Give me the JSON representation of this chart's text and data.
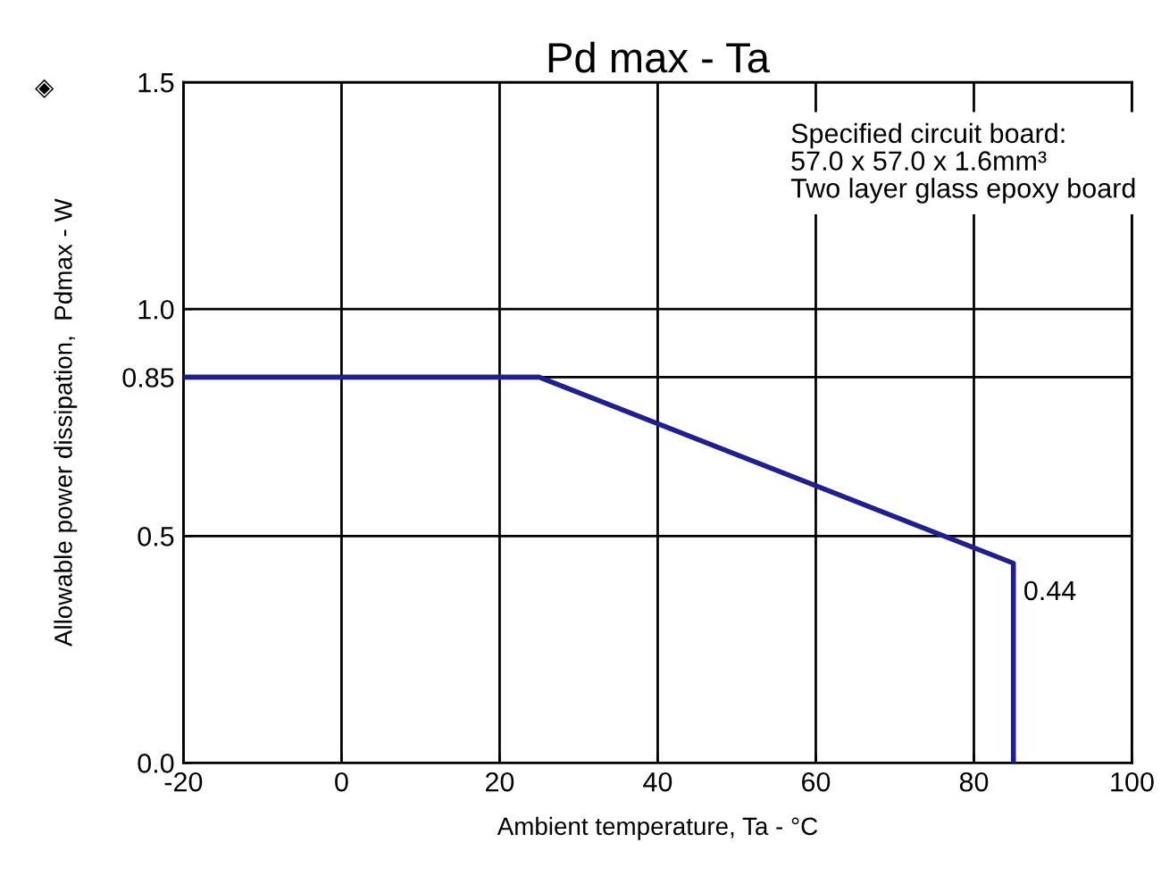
{
  "chart_data": {
    "type": "line",
    "title": "Pd max - Ta",
    "xlabel": "Ambient temperature, Ta - °C",
    "ylabel": "Allowable power dissipation,  Pdmax - W",
    "x": [
      -20,
      25,
      85,
      85
    ],
    "series": [
      {
        "color": "#1f1f8f",
        "values": [
          0.85,
          0.85,
          0.44,
          0.0
        ]
      }
    ],
    "xlim": [
      -20,
      100
    ],
    "xticks": [
      -20,
      0,
      20,
      40,
      60,
      80,
      100
    ],
    "ylim": [
      0,
      1.5
    ],
    "yticks": [
      {
        "value": 0,
        "label": "0.0"
      },
      {
        "value": 0.5,
        "label": "0.5"
      },
      0.85,
      {
        "value": 1.0,
        "label": "1.0"
      },
      {
        "value": 1.5,
        "label": "1.5"
      }
    ],
    "grid": true,
    "marker": "none",
    "line_style": "solid",
    "legend": false,
    "annotations": [
      {
        "text": "0.44",
        "x": 85,
        "y": 0.44
      },
      "Specified circuit board:\n57.0 x 57.0 x 1.6mm³\nTwo layer glass epoxy board",
      "◈"
    ]
  }
}
